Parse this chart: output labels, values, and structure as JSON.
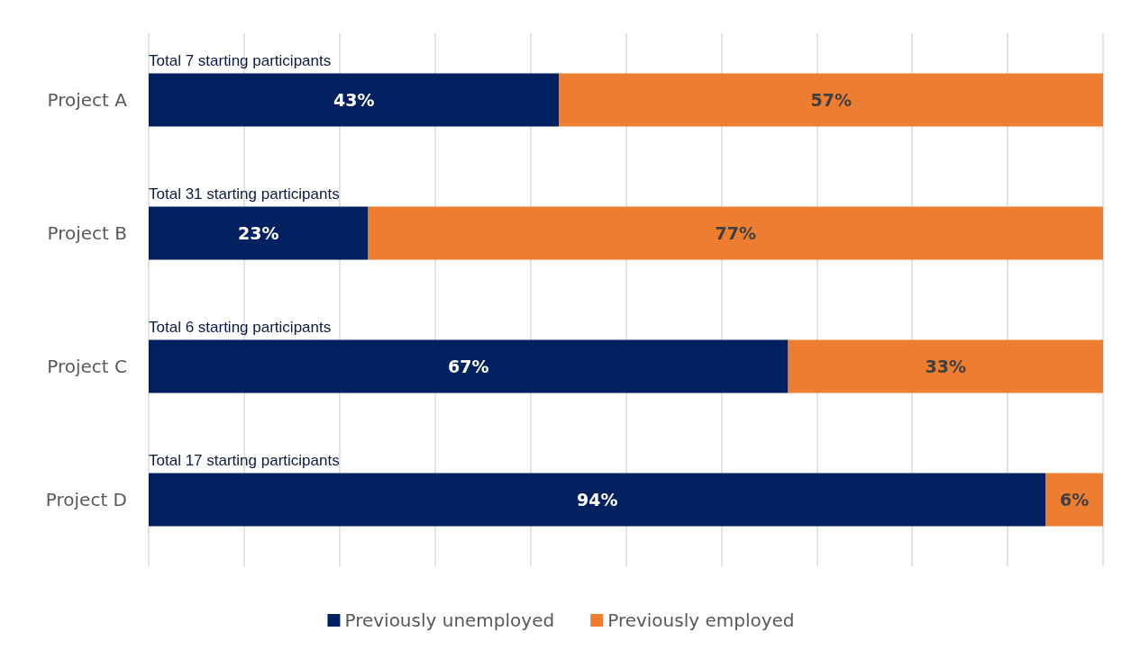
{
  "chart_data": {
    "type": "bar",
    "orientation": "horizontal",
    "stacked": true,
    "categories": [
      "Project A",
      "Project B",
      "Project C",
      "Project D"
    ],
    "series": [
      {
        "name": "Previously unemployed",
        "color": "#002060",
        "values": [
          43,
          23,
          67,
          94
        ],
        "value_labels": [
          "43%",
          "23%",
          "67%",
          "94%"
        ]
      },
      {
        "name": "Previously employed",
        "color": "#ed7d31",
        "values": [
          57,
          77,
          33,
          6
        ],
        "value_labels": [
          "57%",
          "77%",
          "33%",
          "6%"
        ]
      }
    ],
    "xlim": [
      0,
      100
    ],
    "xticks": [
      {
        "value": 0,
        "label": null
      },
      {
        "value": 10,
        "label": null
      },
      {
        "value": 20,
        "label": null
      },
      {
        "value": 30,
        "label": null
      },
      {
        "value": 40,
        "label": null
      },
      {
        "value": 50,
        "label": null
      },
      {
        "value": 60,
        "label": null
      },
      {
        "value": 70,
        "label": null
      },
      {
        "value": 80,
        "label": null
      },
      {
        "value": 90,
        "label": null
      },
      {
        "value": 100,
        "label": null
      }
    ],
    "tick_labels": "y",
    "grid": "x",
    "legend": "bottom",
    "annotations": [
      "Total 7 starting participants",
      "Total 31 starting participants",
      "Total 6 starting participants",
      "Total 17 starting participants"
    ]
  }
}
